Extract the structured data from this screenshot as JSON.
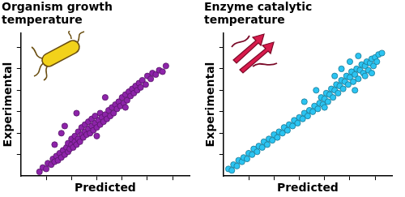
{
  "chart_data": [
    {
      "type": "scatter",
      "title": "Organism growth temperature",
      "x_label": "Predicted",
      "y_label": "Experimental",
      "x": [
        11,
        13,
        15,
        16,
        18,
        19,
        20,
        21,
        22,
        23,
        24,
        25,
        26,
        27,
        28,
        28,
        29,
        30,
        30,
        31,
        32,
        32,
        33,
        34,
        34,
        35,
        36,
        36,
        37,
        38,
        38,
        39,
        40,
        40,
        41,
        42,
        42,
        43,
        44,
        44,
        45,
        46,
        47,
        47,
        48,
        49,
        50,
        51,
        52,
        53,
        54,
        55,
        56,
        57,
        58,
        59,
        60,
        61,
        62,
        63,
        64,
        65,
        66,
        67,
        68,
        69,
        70,
        71,
        72,
        74,
        75,
        77,
        78,
        80,
        82,
        84,
        86,
        26,
        24,
        20,
        33,
        50,
        62,
        45
      ],
      "values": [
        3,
        6,
        5,
        9,
        8,
        12,
        10,
        14,
        11,
        16,
        13,
        18,
        15,
        20,
        17,
        23,
        19,
        22,
        26,
        20,
        24,
        28,
        22,
        26,
        31,
        24,
        29,
        34,
        27,
        31,
        36,
        29,
        33,
        38,
        30,
        35,
        40,
        32,
        37,
        42,
        34,
        39,
        36,
        44,
        41,
        38,
        43,
        40,
        46,
        42,
        48,
        44,
        50,
        47,
        52,
        49,
        55,
        51,
        57,
        53,
        59,
        56,
        61,
        58,
        63,
        60,
        65,
        62,
        67,
        64,
        70,
        68,
        72,
        71,
        74,
        73,
        77,
        35,
        30,
        22,
        44,
        55,
        48,
        28
      ],
      "color": "#8e24aa",
      "marker": "circle",
      "xlim": [
        0,
        100
      ],
      "ylim": [
        0,
        100
      ],
      "xticks": [
        15,
        30,
        45,
        60,
        75,
        90
      ],
      "yticks": [
        15,
        30,
        45,
        60,
        75,
        90
      ],
      "tick_labels": false,
      "grid": false
    },
    {
      "type": "scatter",
      "title": "Enzyme catalytic temperature",
      "x_label": "Predicted",
      "y_label": "Experimental",
      "x": [
        3,
        5,
        6,
        8,
        9,
        11,
        12,
        14,
        15,
        17,
        18,
        20,
        21,
        23,
        24,
        26,
        27,
        29,
        30,
        32,
        33,
        35,
        36,
        38,
        39,
        41,
        42,
        44,
        45,
        47,
        48,
        50,
        51,
        53,
        54,
        56,
        57,
        58,
        59,
        60,
        61,
        62,
        63,
        64,
        65,
        66,
        67,
        68,
        69,
        70,
        71,
        72,
        73,
        74,
        75,
        76,
        77,
        78,
        79,
        80,
        81,
        82,
        83,
        84,
        85,
        86,
        87,
        88,
        89,
        90,
        91,
        92,
        94,
        70,
        66,
        75,
        80,
        78,
        84,
        55,
        48,
        60,
        88
      ],
      "values": [
        5,
        4,
        8,
        7,
        11,
        10,
        13,
        12,
        16,
        15,
        19,
        17,
        21,
        20,
        24,
        22,
        26,
        25,
        29,
        27,
        31,
        30,
        34,
        32,
        36,
        35,
        39,
        37,
        41,
        40,
        44,
        42,
        46,
        45,
        49,
        47,
        51,
        55,
        50,
        54,
        58,
        52,
        57,
        61,
        55,
        60,
        64,
        58,
        63,
        67,
        61,
        66,
        70,
        64,
        69,
        73,
        66,
        71,
        75,
        68,
        74,
        78,
        72,
        77,
        80,
        74,
        79,
        82,
        77,
        83,
        80,
        85,
        86,
        75,
        70,
        80,
        84,
        60,
        70,
        60,
        52,
        48,
        72
      ],
      "color": "#2bc4f2",
      "marker": "circle",
      "xlim": [
        0,
        100
      ],
      "ylim": [
        0,
        100
      ],
      "xticks": [
        15,
        30,
        45,
        60,
        75,
        90
      ],
      "yticks": [
        15,
        30,
        45,
        60,
        75,
        90
      ],
      "tick_labels": false,
      "grid": false
    }
  ]
}
